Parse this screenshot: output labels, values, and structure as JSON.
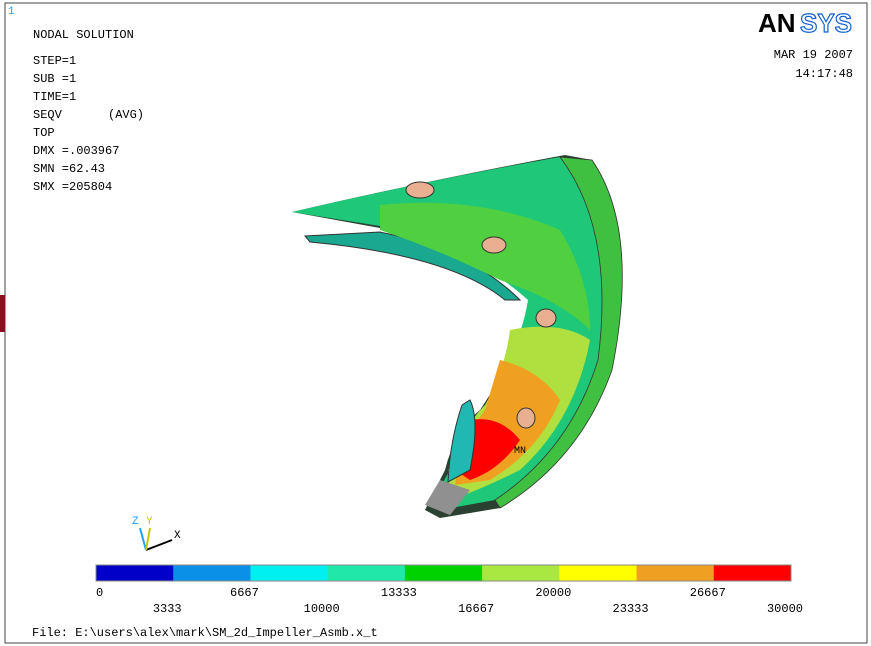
{
  "window_number": "1",
  "info": [
    "NODAL SOLUTION",
    "STEP=1",
    "SUB =1",
    "TIME=1",
    "SEQV",
    "(AVG)",
    "TOP",
    "DMX =.003967",
    "SMN =62.43",
    "SMX =205804"
  ],
  "logo": {
    "part1": "AN",
    "part2": "SYS"
  },
  "date": "MAR 19 2007",
  "time": "14:17:48",
  "min_marker": "MN",
  "triad": {
    "z": "Z",
    "y": "Y",
    "x": "X"
  },
  "legend": {
    "colors": [
      "#0000c8",
      "#0a90e6",
      "#00f0f0",
      "#20e8a8",
      "#00d200",
      "#a8e840",
      "#ffff00",
      "#f0a020",
      "#ff0000"
    ],
    "ticks": [
      0,
      3333,
      6667,
      10000,
      13333,
      16667,
      20000,
      23333,
      26667,
      30000
    ]
  },
  "file": "File: E:\\users\\alex\\mark\\SM_2d_Impeller_Asmb.x_t"
}
